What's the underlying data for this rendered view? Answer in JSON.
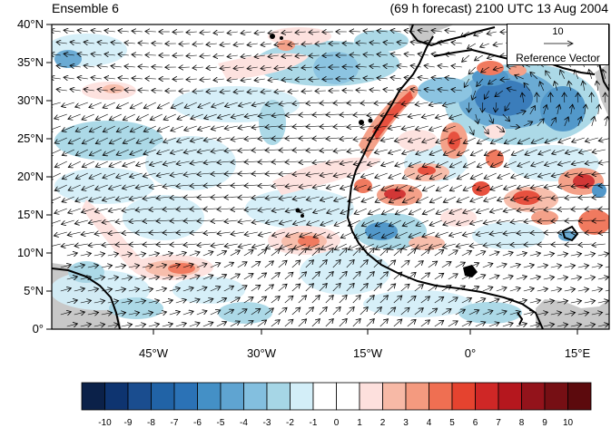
{
  "titles": {
    "left": "Ensemble 6",
    "right": "(69 h forecast) 2100 UTC 13 Aug 2004"
  },
  "map": {
    "lat_ticks": [
      "40°N",
      "35°N",
      "30°N",
      "25°N",
      "20°N",
      "15°N",
      "10°N",
      "5°N",
      "0°"
    ],
    "lon_ticks": [
      "45°W",
      "30°W",
      "15°W",
      "0°",
      "15°E"
    ],
    "land_mask_color": "#c8c8c8",
    "coastline_color": "#000000"
  },
  "reference_vector": {
    "magnitude": "10",
    "label": "Reference Vector"
  },
  "colorbar": {
    "labels": [
      "-10",
      "-9",
      "-8",
      "-7",
      "-6",
      "-5",
      "-4",
      "-3",
      "-2",
      "-1",
      "0",
      "1",
      "2",
      "3",
      "4",
      "5",
      "6",
      "7",
      "8",
      "9",
      "10"
    ],
    "colors": [
      "#0b2149",
      "#0e3470",
      "#1a4d8f",
      "#2163a6",
      "#2b72b6",
      "#4490c6",
      "#5fa4d1",
      "#83bfdf",
      "#a6d6e6",
      "#d3eef8",
      "#ffffff",
      "#ffffff",
      "#fde0dd",
      "#f7b9a6",
      "#f49a7f",
      "#ef6f52",
      "#e5432f",
      "#cf2726",
      "#b5171e",
      "#93131b",
      "#760f14",
      "#5c0a0d"
    ]
  }
}
